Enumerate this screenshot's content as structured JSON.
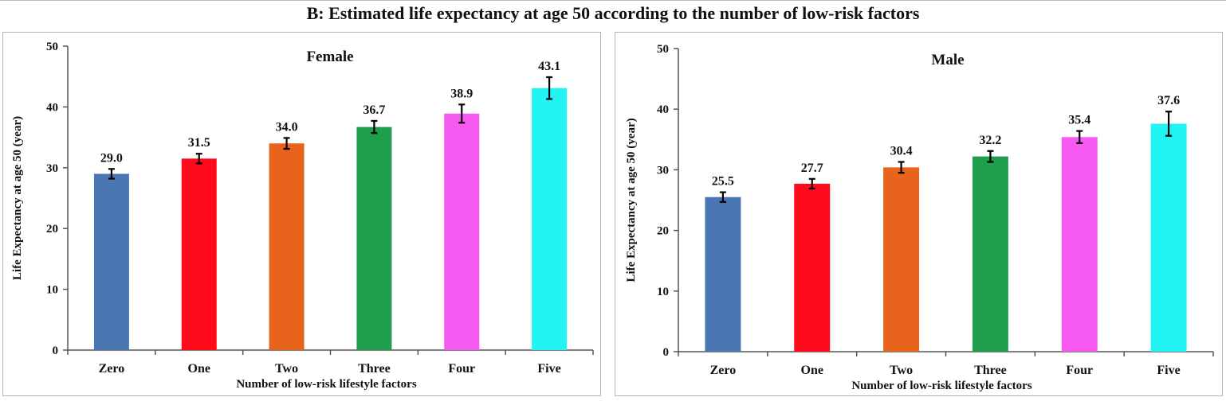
{
  "figure_title": "B: Estimated life expectancy at age 50 according to the number of low-risk factors",
  "chart_data": [
    {
      "type": "bar",
      "title": "Female",
      "xlabel": "Number  of low-risk  lifestyle factors",
      "ylabel": "Life Expectancy at age 50 (year)",
      "ylim": [
        0,
        50
      ],
      "yticks": [
        0,
        10,
        20,
        30,
        40,
        50
      ],
      "categories": [
        "Zero",
        "One",
        "Two",
        "Three",
        "Four",
        "Five"
      ],
      "values": [
        29.0,
        31.5,
        34.0,
        36.7,
        38.9,
        43.1
      ],
      "value_labels": [
        "29.0",
        "31.5",
        "34.0",
        "36.7",
        "38.9",
        "43.1"
      ],
      "error": [
        0.8,
        0.8,
        0.9,
        1.0,
        1.5,
        1.8
      ],
      "colors": [
        "#4a76b2",
        "#ff0a1a",
        "#e8641c",
        "#1f9e4e",
        "#f75af0",
        "#22f4f4"
      ],
      "grid": false,
      "legend": "none"
    },
    {
      "type": "bar",
      "title": "Male",
      "xlabel": "Number  of low-risk  lifestyle factors",
      "ylabel": "Life Expectancy at age 50 (year)",
      "ylim": [
        0,
        50
      ],
      "yticks": [
        0,
        10,
        20,
        30,
        40,
        50
      ],
      "categories": [
        "Zero",
        "One",
        "Two",
        "Three",
        "Four",
        "Five"
      ],
      "values": [
        25.5,
        27.7,
        30.4,
        32.2,
        35.4,
        37.6
      ],
      "value_labels": [
        "25.5",
        "27.7",
        "30.4",
        "32.2",
        "35.4",
        "37.6"
      ],
      "error": [
        0.8,
        0.8,
        0.9,
        0.9,
        1.0,
        2.0
      ],
      "colors": [
        "#4a76b2",
        "#ff0a1a",
        "#e8641c",
        "#1f9e4e",
        "#f75af0",
        "#22f4f4"
      ],
      "grid": false,
      "legend": "none"
    }
  ]
}
